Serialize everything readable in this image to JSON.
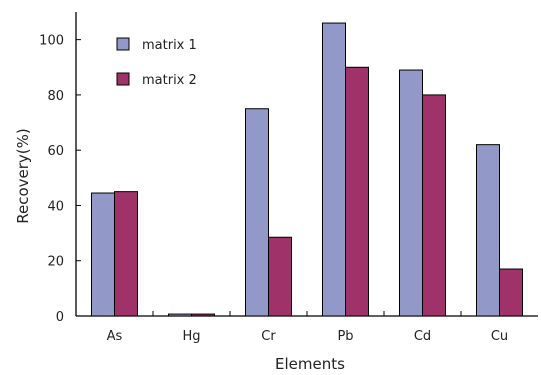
{
  "chart_data": {
    "type": "bar",
    "title": "",
    "xlabel": "Elements",
    "ylabel": "Recovery(%)",
    "categories": [
      "As",
      "Hg",
      "Cr",
      "Pb",
      "Cd",
      "Cu"
    ],
    "ylim": [
      0,
      110
    ],
    "yticks": [
      0,
      20,
      40,
      60,
      80,
      100
    ],
    "grid": false,
    "legend_position": "top-left",
    "series": [
      {
        "name": "matrix 1",
        "color": "#9298c8",
        "values": [
          44.5,
          0.7,
          75,
          106,
          89,
          62
        ]
      },
      {
        "name": "matrix 2",
        "color": "#a0326a",
        "values": [
          45,
          0.7,
          28.5,
          90,
          80,
          17
        ]
      }
    ]
  }
}
